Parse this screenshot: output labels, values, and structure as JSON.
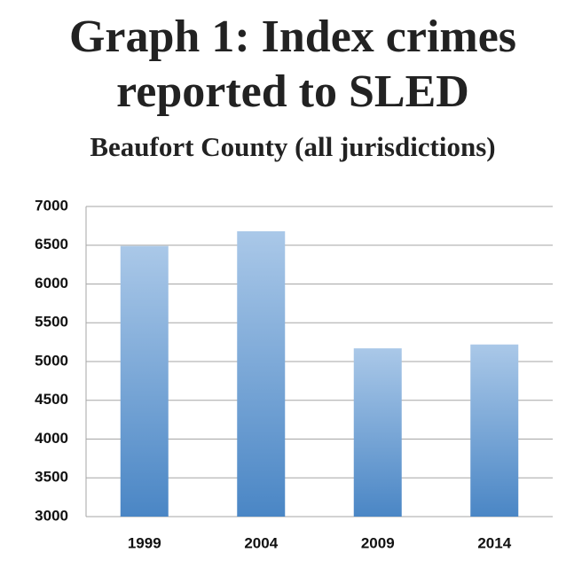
{
  "chart_data": {
    "type": "bar",
    "title": "Graph 1: Index crimes",
    "title_line2": "reported to SLED",
    "subtitle": "Beaufort County (all jurisdictions)",
    "categories": [
      "1999",
      "2004",
      "2009",
      "2014"
    ],
    "values": [
      6490,
      6680,
      5170,
      5220
    ],
    "color": "#4f8ac8",
    "ylim": [
      3000,
      7000
    ],
    "yticks": [
      3000,
      3500,
      4000,
      4500,
      5000,
      5500,
      6000,
      6500,
      7000
    ],
    "grid": true
  }
}
